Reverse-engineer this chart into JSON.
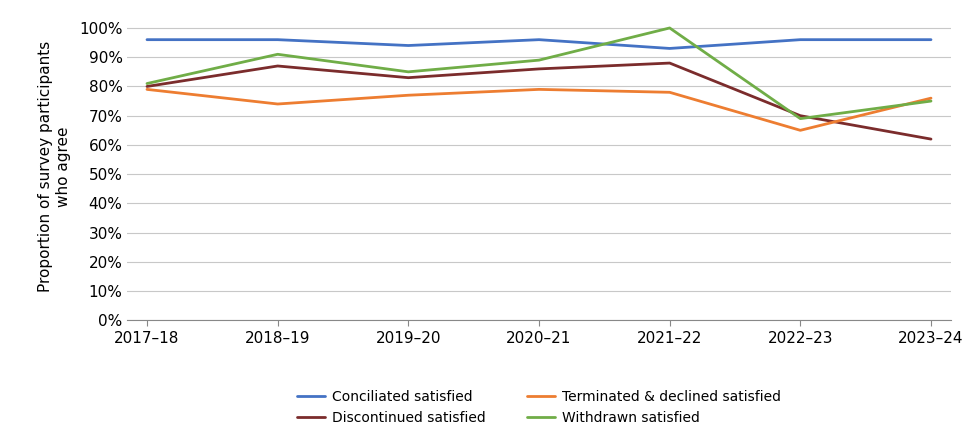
{
  "x_labels": [
    "2017–18",
    "2018–19",
    "2019–20",
    "2020–21",
    "2021–22",
    "2022–23",
    "2023–24"
  ],
  "series": [
    {
      "name": "Conciliated satisfied",
      "color": "#4472C4",
      "values": [
        0.96,
        0.96,
        0.94,
        0.96,
        0.93,
        0.96,
        0.96
      ]
    },
    {
      "name": "Discontinued satisfied",
      "color": "#7B2C2C",
      "values": [
        0.8,
        0.87,
        0.83,
        0.86,
        0.88,
        0.7,
        0.62
      ]
    },
    {
      "name": "Terminated & declined satisfied",
      "color": "#ED7D31",
      "values": [
        0.79,
        0.74,
        0.77,
        0.79,
        0.78,
        0.65,
        0.76
      ]
    },
    {
      "name": "Withdrawn satisfied",
      "color": "#70AD47",
      "values": [
        0.81,
        0.91,
        0.85,
        0.89,
        1.0,
        0.69,
        0.75
      ]
    }
  ],
  "ylabel_line1": "Proportion of survey participants",
  "ylabel_line2": "who agree",
  "ylim": [
    0,
    1.05
  ],
  "yticks": [
    0.0,
    0.1,
    0.2,
    0.3,
    0.4,
    0.5,
    0.6,
    0.7,
    0.8,
    0.9,
    1.0
  ],
  "ytick_labels": [
    "0%",
    "10%",
    "20%",
    "30%",
    "40%",
    "50%",
    "60%",
    "70%",
    "80%",
    "90%",
    "100%"
  ],
  "grid_color": "#C8C8C8",
  "background_color": "#FFFFFF",
  "line_width": 2.0,
  "tick_fontsize": 11,
  "ylabel_fontsize": 11,
  "legend_fontsize": 10
}
